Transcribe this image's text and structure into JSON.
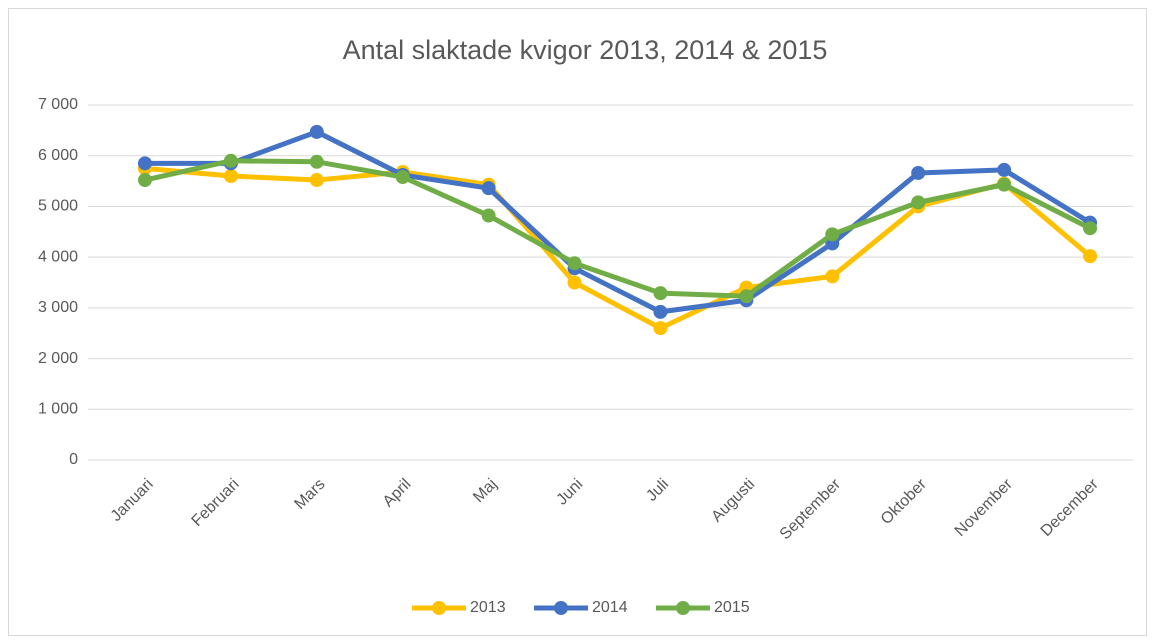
{
  "chart_data": {
    "type": "line",
    "title": "Antal slaktade kvigor 2013, 2014 & 2015",
    "categories": [
      "Januari",
      "Februari",
      "Mars",
      "April",
      "Maj",
      "Juni",
      "Juli",
      "Augusti",
      "September",
      "Oktober",
      "November",
      "December"
    ],
    "series": [
      {
        "name": "2013",
        "color": "#FFC000",
        "values": [
          5750,
          5600,
          5520,
          5680,
          5430,
          3500,
          2600,
          3400,
          3620,
          5000,
          5450,
          4020
        ]
      },
      {
        "name": "2014",
        "color": "#4472C4",
        "values": [
          5850,
          5850,
          6470,
          5620,
          5360,
          3780,
          2920,
          3150,
          4270,
          5660,
          5720,
          4680
        ]
      },
      {
        "name": "2015",
        "color": "#70AD47",
        "values": [
          5520,
          5900,
          5880,
          5580,
          4820,
          3880,
          3290,
          3230,
          4450,
          5080,
          5430,
          4570
        ]
      }
    ],
    "ylim": [
      0,
      7000
    ],
    "yticks": [
      0,
      {
        "value": 1000,
        "label": "1 000"
      },
      {
        "value": 2000,
        "label": "2 000"
      },
      {
        "value": 3000,
        "label": "3 000"
      },
      {
        "value": 4000,
        "label": "4 000"
      },
      {
        "value": 5000,
        "label": "5 000"
      },
      {
        "value": 6000,
        "label": "6 000"
      },
      {
        "value": 7000,
        "label": "7 000"
      }
    ],
    "grid": true,
    "legend": "bottom"
  }
}
